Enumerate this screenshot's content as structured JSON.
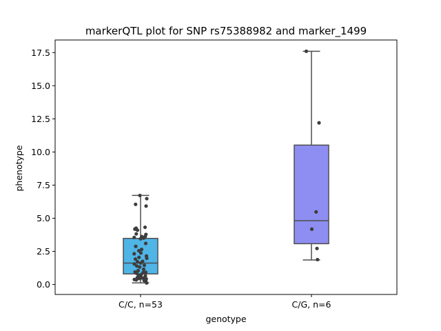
{
  "chart_data": {
    "type": "box",
    "title": "markerQTL plot for SNP rs75388982 and marker_1499",
    "xlabel": "genotype",
    "ylabel": "phenotype",
    "ylim": [
      -0.75,
      18.45
    ],
    "yticks": [
      "0.0",
      "2.5",
      "5.0",
      "7.5",
      "10.0",
      "12.5",
      "15.0",
      "17.5"
    ],
    "grid": false,
    "categories": [
      "C/C, n=53",
      "C/G, n=6"
    ],
    "boxes": [
      {
        "category": "C/C, n=53",
        "color": "#4fb4e6",
        "q1": 0.8,
        "median": 1.62,
        "q3": 3.48,
        "whisker_low": 0.12,
        "whisker_high": 6.72,
        "points": [
          [
            -0.04,
            6.72
          ],
          [
            -0.29,
            6.05
          ],
          [
            0.36,
            6.48
          ],
          [
            0.32,
            5.92
          ],
          [
            0.26,
            4.32
          ],
          [
            -0.33,
            4.18
          ],
          [
            -0.26,
            4.25
          ],
          [
            -0.18,
            4.1
          ],
          [
            0.07,
            3.62
          ],
          [
            -0.25,
            3.82
          ],
          [
            0.31,
            3.78
          ],
          [
            0.27,
            3.62
          ],
          [
            -0.37,
            3.55
          ],
          [
            0.0,
            3.45
          ],
          [
            0.18,
            3.5
          ],
          [
            0.3,
            3.1
          ],
          [
            -0.28,
            2.88
          ],
          [
            0.06,
            2.65
          ],
          [
            -0.1,
            2.55
          ],
          [
            0.02,
            2.38
          ],
          [
            -0.37,
            2.32
          ],
          [
            0.34,
            2.15
          ],
          [
            -0.09,
            2.05
          ],
          [
            0.36,
            1.98
          ],
          [
            -0.3,
            1.92
          ],
          [
            0.12,
            1.75
          ],
          [
            0.01,
            1.62
          ],
          [
            -0.18,
            1.72
          ],
          [
            -0.36,
            1.55
          ],
          [
            -0.22,
            1.4
          ],
          [
            0.22,
            1.45
          ],
          [
            -0.05,
            1.32
          ],
          [
            0.18,
            1.15
          ],
          [
            -0.14,
            1.05
          ],
          [
            -0.32,
            0.95
          ],
          [
            0.15,
            0.9
          ],
          [
            -0.23,
            0.85
          ],
          [
            0.3,
            0.92
          ],
          [
            0.04,
            0.75
          ],
          [
            0.28,
            0.65
          ],
          [
            -0.12,
            0.7
          ],
          [
            -0.01,
            0.6
          ],
          [
            0.26,
            0.55
          ],
          [
            -0.19,
            0.52
          ],
          [
            0.07,
            0.5
          ],
          [
            0.16,
            0.48
          ],
          [
            -0.08,
            0.45
          ],
          [
            0.33,
            0.42
          ],
          [
            -0.36,
            0.38
          ],
          [
            0.21,
            0.3
          ],
          [
            -0.25,
            0.35
          ],
          [
            0.3,
            0.28
          ],
          [
            0.35,
            0.12
          ]
        ]
      },
      {
        "category": "C/G, n=6",
        "color": "#8e8ef2",
        "q1": 3.08,
        "median": 4.82,
        "q3": 10.52,
        "whisker_low": 1.85,
        "whisker_high": 17.6,
        "points": [
          [
            -0.3,
            17.6
          ],
          [
            0.44,
            12.2
          ],
          [
            0.27,
            5.48
          ],
          [
            0.02,
            4.18
          ],
          [
            0.32,
            2.72
          ],
          [
            0.35,
            1.88
          ]
        ]
      }
    ]
  }
}
